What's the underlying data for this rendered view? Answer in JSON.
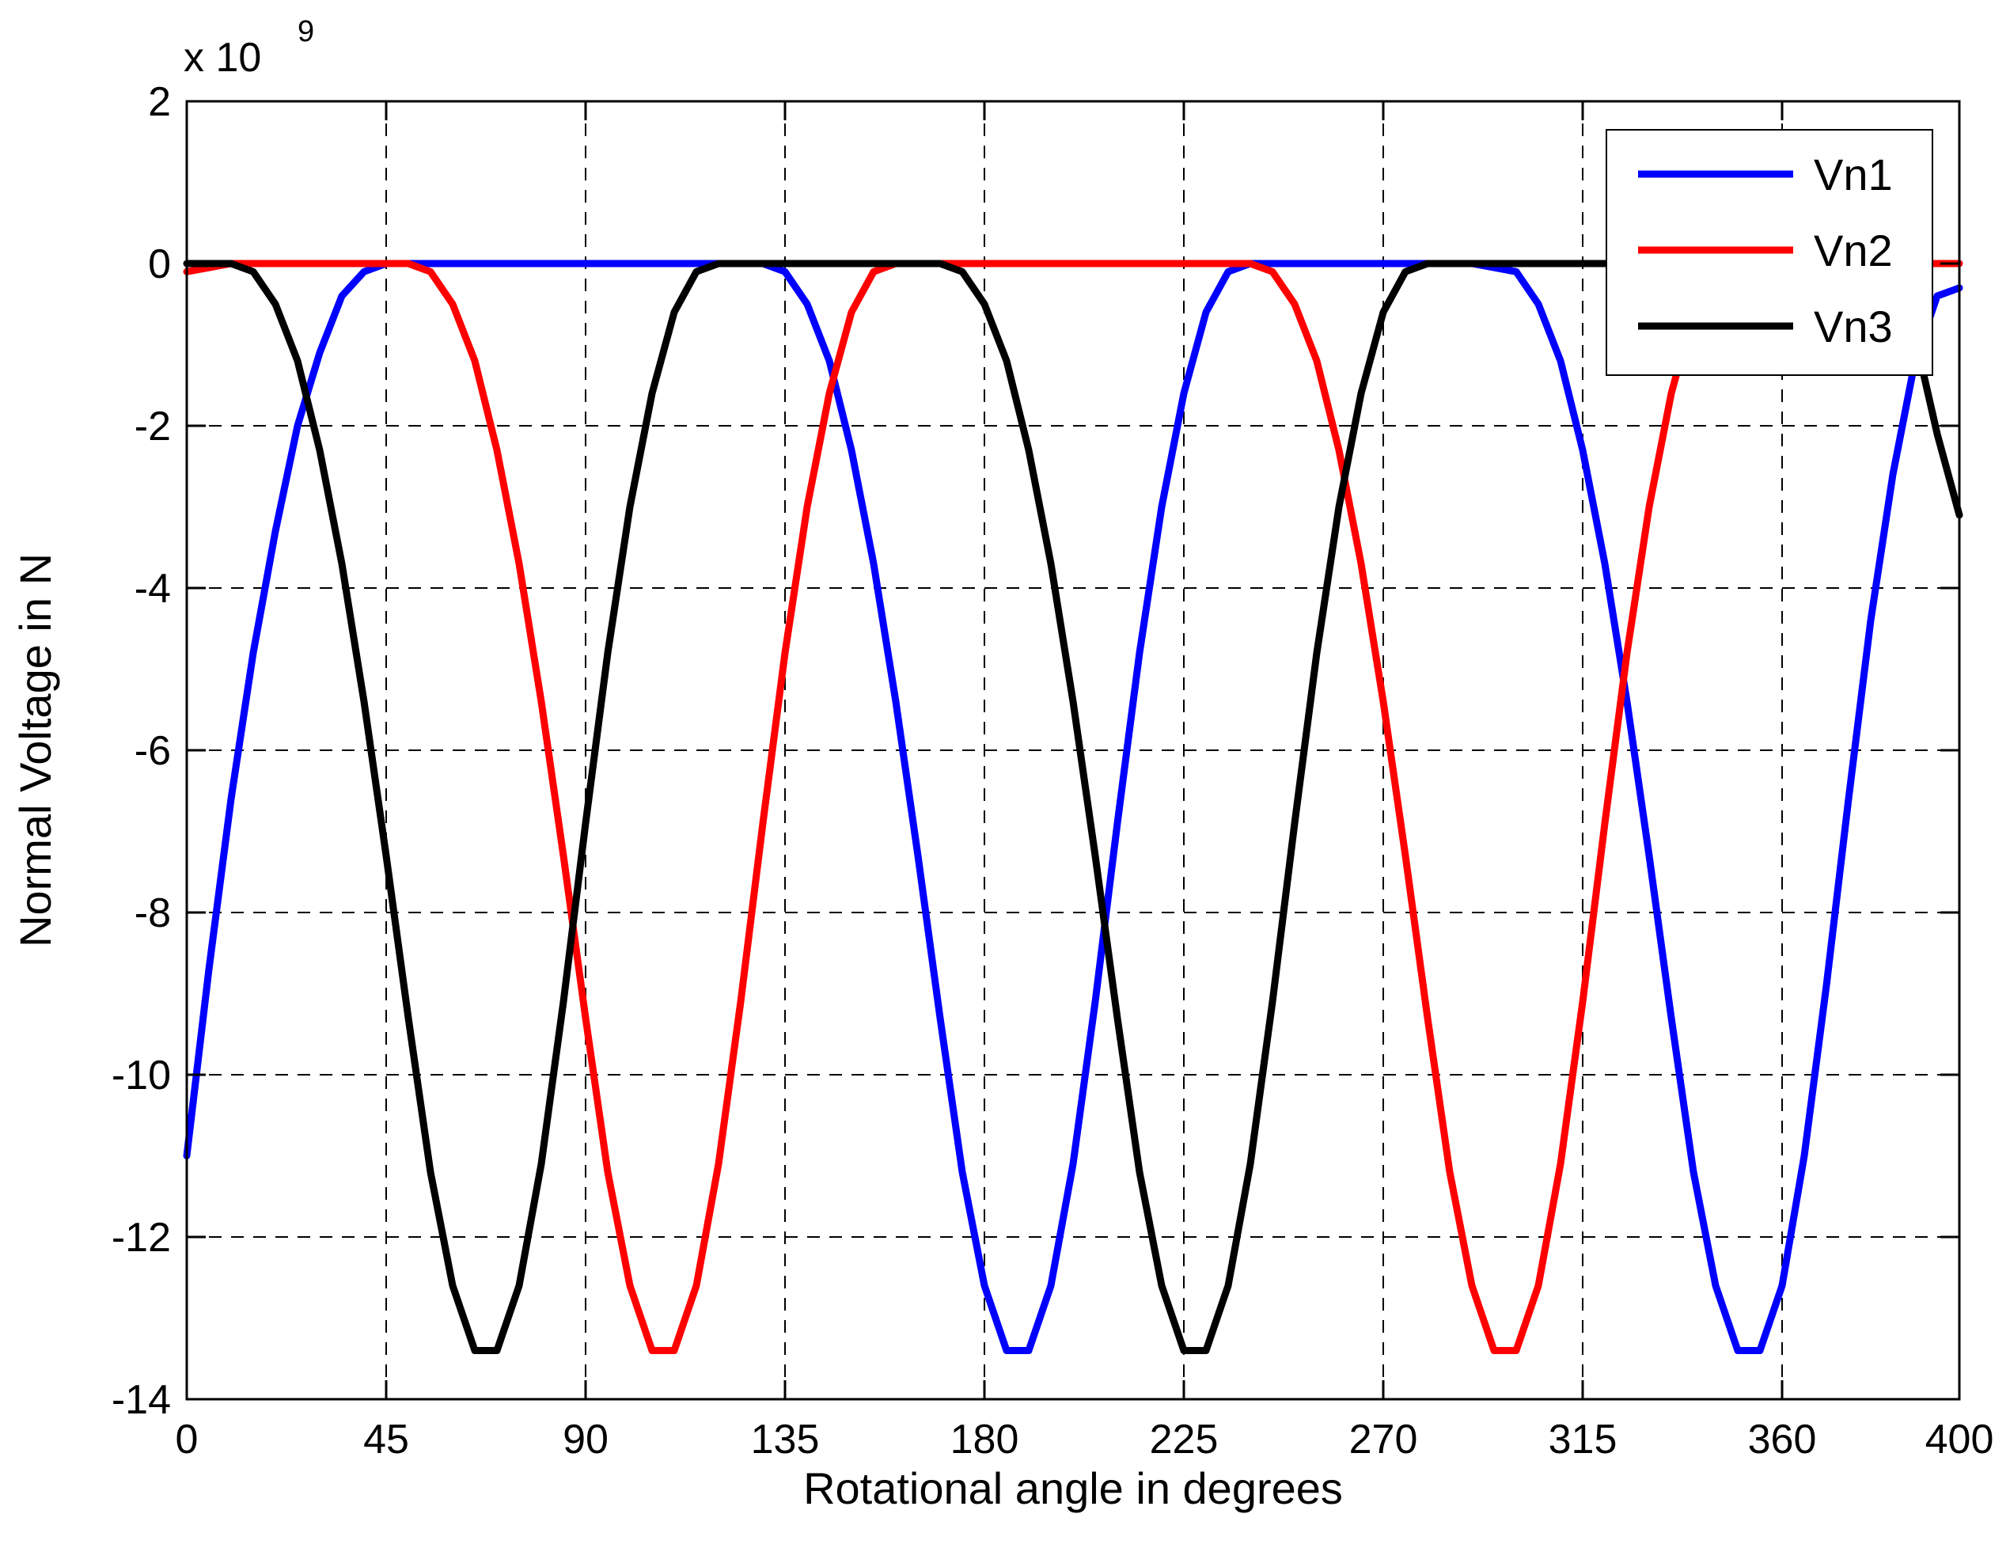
{
  "chart_data": {
    "type": "line",
    "title": "",
    "xlabel": "Rotational angle in degrees",
    "ylabel": "Normal Voltage in N",
    "y_multiplier_label": {
      "base": "x 10",
      "exponent": "9"
    },
    "xlim": [
      0,
      400
    ],
    "ylim": [
      -14,
      2
    ],
    "xticks": [
      0,
      45,
      90,
      135,
      180,
      225,
      270,
      315,
      360,
      400
    ],
    "yticks": [
      2,
      0,
      -2,
      -4,
      -6,
      -8,
      -10,
      -12,
      -14
    ],
    "grid": true,
    "legend_position": "top-right",
    "series": [
      {
        "name": "Vn1",
        "color": "#0000ff",
        "x": [
          0,
          5,
          10,
          15,
          20,
          25,
          30,
          35,
          40,
          45,
          50,
          55,
          60,
          70,
          80,
          90,
          100,
          110,
          120,
          130,
          135,
          140,
          145,
          150,
          155,
          160,
          165,
          170,
          175,
          180,
          185,
          190,
          195,
          200,
          205,
          210,
          215,
          220,
          225,
          230,
          235,
          240,
          250,
          260,
          270,
          280,
          290,
          300,
          305,
          310,
          315,
          320,
          325,
          330,
          335,
          340,
          345,
          350,
          355,
          360,
          365,
          370,
          375,
          380,
          385,
          390,
          395,
          400
        ],
        "y": [
          -11.0,
          -8.7,
          -6.6,
          -4.8,
          -3.3,
          -2.0,
          -1.1,
          -0.4,
          -0.1,
          0,
          0,
          0,
          0,
          0,
          0,
          0,
          0,
          0,
          0,
          0,
          -0.1,
          -0.5,
          -1.2,
          -2.3,
          -3.7,
          -5.4,
          -7.3,
          -9.3,
          -11.2,
          -12.6,
          -13.4,
          -13.4,
          -12.6,
          -11.1,
          -9.1,
          -6.9,
          -4.8,
          -3.0,
          -1.6,
          -0.6,
          -0.1,
          0,
          0,
          0,
          0,
          0,
          0,
          -0.1,
          -0.5,
          -1.2,
          -2.3,
          -3.7,
          -5.4,
          -7.3,
          -9.3,
          -11.2,
          -12.6,
          -13.4,
          -13.4,
          -12.6,
          -11.0,
          -8.9,
          -6.6,
          -4.4,
          -2.6,
          -1.2,
          -0.4,
          -0.3
        ]
      },
      {
        "name": "Vn2",
        "color": "#ff0000",
        "x": [
          0,
          10,
          20,
          30,
          40,
          50,
          55,
          60,
          65,
          70,
          75,
          80,
          85,
          90,
          95,
          100,
          105,
          110,
          115,
          120,
          125,
          130,
          135,
          140,
          145,
          150,
          155,
          160,
          165,
          170,
          175,
          180,
          190,
          200,
          210,
          220,
          230,
          240,
          245,
          250,
          255,
          260,
          265,
          270,
          275,
          280,
          285,
          290,
          295,
          300,
          305,
          310,
          315,
          320,
          325,
          330,
          335,
          340,
          345,
          350,
          355,
          360,
          370,
          380,
          390,
          400
        ],
        "y": [
          -0.1,
          0,
          0,
          0,
          0,
          0,
          -0.1,
          -0.5,
          -1.2,
          -2.3,
          -3.7,
          -5.4,
          -7.3,
          -9.3,
          -11.2,
          -12.6,
          -13.4,
          -13.4,
          -12.6,
          -11.1,
          -9.1,
          -6.9,
          -4.8,
          -3.0,
          -1.6,
          -0.6,
          -0.1,
          0,
          0,
          0,
          0,
          0,
          0,
          0,
          0,
          0,
          0,
          0,
          -0.1,
          -0.5,
          -1.2,
          -2.3,
          -3.7,
          -5.4,
          -7.3,
          -9.3,
          -11.2,
          -12.6,
          -13.4,
          -13.4,
          -12.6,
          -11.1,
          -9.1,
          -6.9,
          -4.8,
          -3.0,
          -1.6,
          -0.6,
          -0.1,
          0,
          0,
          0,
          0,
          0,
          0,
          0
        ]
      },
      {
        "name": "Vn3",
        "color": "#000000",
        "x": [
          0,
          5,
          10,
          15,
          20,
          25,
          30,
          35,
          40,
          45,
          50,
          55,
          60,
          65,
          70,
          75,
          80,
          85,
          90,
          95,
          100,
          105,
          110,
          115,
          120,
          125,
          130,
          140,
          150,
          160,
          170,
          175,
          180,
          185,
          190,
          195,
          200,
          205,
          210,
          215,
          220,
          225,
          230,
          235,
          240,
          245,
          250,
          255,
          260,
          265,
          270,
          275,
          280,
          285,
          290,
          295,
          300,
          310,
          320,
          330,
          340,
          350,
          360,
          370,
          380,
          385,
          390,
          395,
          400
        ],
        "y": [
          0,
          0,
          0,
          -0.1,
          -0.5,
          -1.2,
          -2.3,
          -3.7,
          -5.4,
          -7.3,
          -9.3,
          -11.2,
          -12.6,
          -13.4,
          -13.4,
          -12.6,
          -11.1,
          -9.1,
          -6.9,
          -4.8,
          -3.0,
          -1.6,
          -0.6,
          -0.1,
          0,
          0,
          0,
          0,
          0,
          0,
          0,
          -0.1,
          -0.5,
          -1.2,
          -2.3,
          -3.7,
          -5.4,
          -7.3,
          -9.3,
          -11.2,
          -12.6,
          -13.4,
          -13.4,
          -12.6,
          -11.1,
          -9.1,
          -6.9,
          -4.8,
          -3.0,
          -1.6,
          -0.6,
          -0.1,
          0,
          0,
          0,
          0,
          0,
          0,
          0,
          0,
          0,
          0,
          0,
          0,
          0,
          -0.1,
          -0.9,
          -2.1,
          -3.1
        ]
      }
    ]
  }
}
